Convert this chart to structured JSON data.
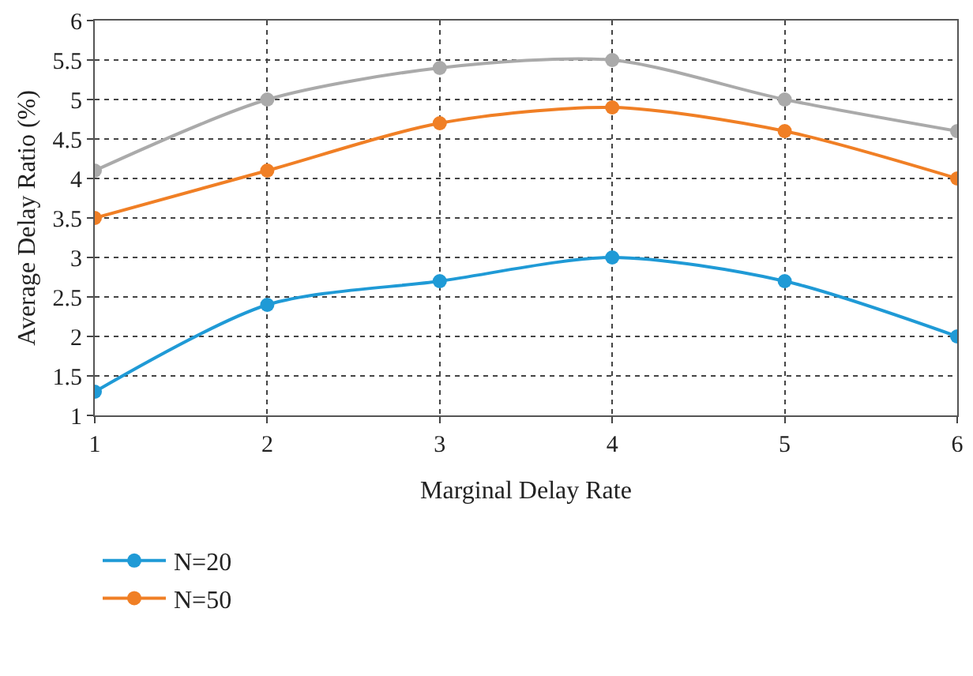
{
  "chart_data": {
    "type": "line",
    "xlabel": "Marginal Delay Rate",
    "ylabel": "Average Delay Ratio (%)",
    "x": [
      1,
      2,
      3,
      4,
      5,
      6
    ],
    "xlim": [
      1,
      6
    ],
    "xticks": [
      1,
      2,
      3,
      4,
      5,
      6
    ],
    "ylim": [
      1,
      6
    ],
    "yticks": [
      1,
      1.5,
      2,
      2.5,
      3,
      3.5,
      4,
      4.5,
      5,
      5.5,
      6
    ],
    "grid": true,
    "legend": "bottom",
    "marker": "circle",
    "line_style": "solid",
    "series": [
      {
        "name": "N=20",
        "color": "#1f9ad6",
        "values": [
          1.3,
          2.4,
          2.7,
          3.0,
          2.7,
          2.0
        ]
      },
      {
        "name": "N=50",
        "color": "#f07f25",
        "values": [
          3.5,
          4.1,
          4.7,
          4.9,
          4.6,
          4.0
        ]
      },
      {
        "color": "#aaaaaa",
        "values": [
          4.1,
          5.0,
          5.4,
          5.5,
          5.0,
          4.6
        ]
      }
    ]
  }
}
